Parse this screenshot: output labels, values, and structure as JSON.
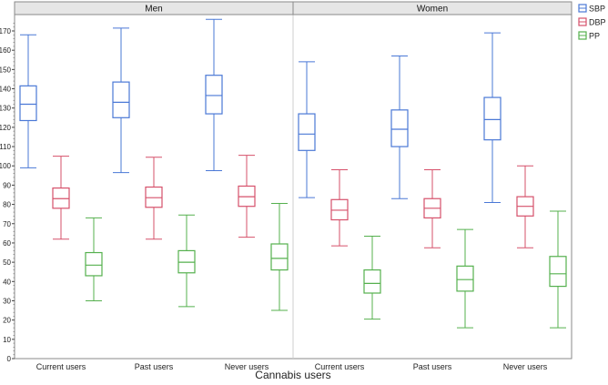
{
  "chart_data": {
    "type": "box",
    "xlabel": "Cannabis users",
    "ylabel": "",
    "ylim": [
      0,
      180
    ],
    "yticks": [
      0,
      10,
      20,
      30,
      40,
      50,
      60,
      70,
      80,
      90,
      100,
      110,
      120,
      130,
      140,
      150,
      160,
      170
    ],
    "legend_position": "top-right",
    "categories": [
      "Current users",
      "Past users",
      "Never users"
    ],
    "panels": [
      {
        "label": "Men",
        "groups": [
          {
            "category": "Current users",
            "SBP": {
              "min": 99,
              "q1": 123.5,
              "median": 132,
              "q3": 141.5,
              "max": 168
            },
            "DBP": {
              "min": 62,
              "q1": 78,
              "median": 83,
              "q3": 88.5,
              "max": 105
            },
            "PP": {
              "min": 30,
              "q1": 43,
              "median": 48.5,
              "q3": 55,
              "max": 73
            }
          },
          {
            "category": "Past users",
            "SBP": {
              "min": 96.5,
              "q1": 125,
              "median": 133,
              "q3": 143.5,
              "max": 171.5
            },
            "DBP": {
              "min": 62,
              "q1": 78.5,
              "median": 83.5,
              "q3": 89,
              "max": 104.5
            },
            "PP": {
              "min": 27,
              "q1": 44.5,
              "median": 50,
              "q3": 56,
              "max": 74.5
            }
          },
          {
            "category": "Never users",
            "SBP": {
              "min": 97.5,
              "q1": 127,
              "median": 136.5,
              "q3": 147,
              "max": 176
            },
            "DBP": {
              "min": 63,
              "q1": 79,
              "median": 84,
              "q3": 89.5,
              "max": 105.5
            },
            "PP": {
              "min": 25,
              "q1": 46,
              "median": 52,
              "q3": 59.5,
              "max": 80.5
            }
          }
        ]
      },
      {
        "label": "Women",
        "groups": [
          {
            "category": "Current users",
            "SBP": {
              "min": 83.5,
              "q1": 108,
              "median": 116.5,
              "q3": 127,
              "max": 154
            },
            "DBP": {
              "min": 58.5,
              "q1": 72,
              "median": 77,
              "q3": 82.5,
              "max": 98
            },
            "PP": {
              "min": 20.5,
              "q1": 34,
              "median": 39,
              "q3": 46,
              "max": 63.5
            }
          },
          {
            "category": "Past users",
            "SBP": {
              "min": 83,
              "q1": 110,
              "median": 119,
              "q3": 129,
              "max": 157
            },
            "DBP": {
              "min": 57.5,
              "q1": 73,
              "median": 78,
              "q3": 83,
              "max": 98
            },
            "PP": {
              "min": 16,
              "q1": 35,
              "median": 41,
              "q3": 48,
              "max": 67
            }
          },
          {
            "category": "Never users",
            "SBP": {
              "min": 81,
              "q1": 113.5,
              "median": 124,
              "q3": 135.5,
              "max": 169
            },
            "DBP": {
              "min": 57.5,
              "q1": 74,
              "median": 79,
              "q3": 84,
              "max": 100
            },
            "PP": {
              "min": 16,
              "q1": 37.5,
              "median": 44,
              "q3": 53,
              "max": 76.5
            }
          }
        ]
      }
    ],
    "series": [
      {
        "name": "SBP",
        "color": "#4a78d6"
      },
      {
        "name": "DBP",
        "color": "#d6506a"
      },
      {
        "name": "PP",
        "color": "#55b04e"
      }
    ],
    "grid": false
  }
}
